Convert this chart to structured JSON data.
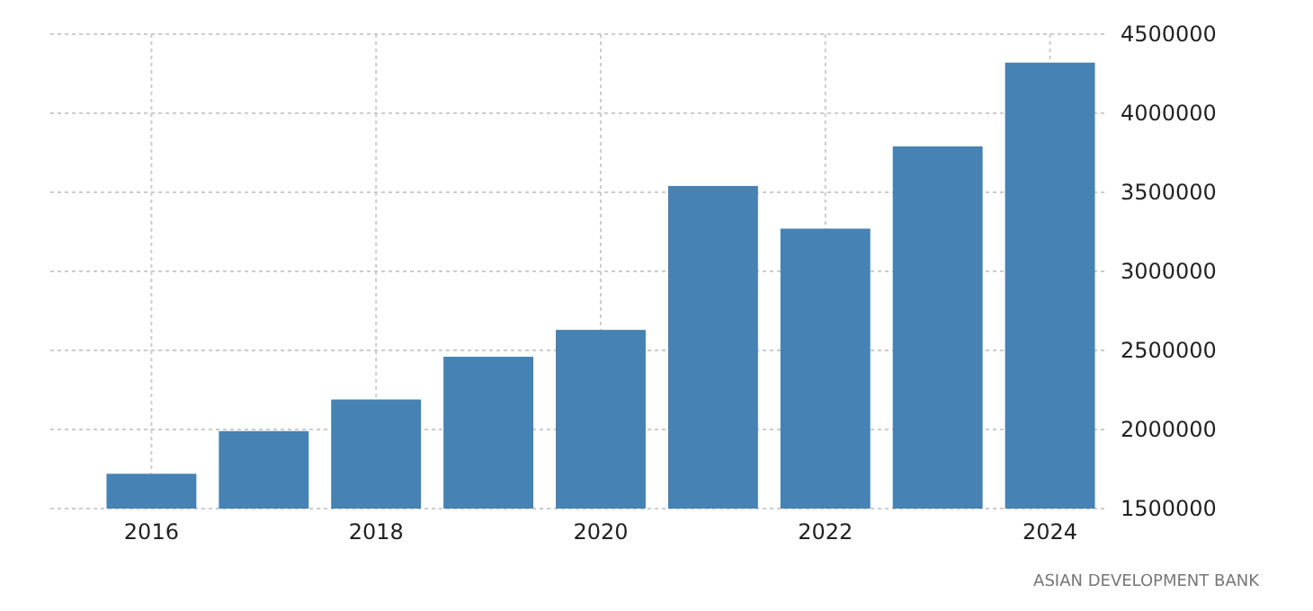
{
  "chart_data": {
    "type": "bar",
    "x": [
      2016,
      2017,
      2018,
      2019,
      2020,
      2021,
      2022,
      2023,
      2024
    ],
    "values": [
      1720000,
      1990000,
      2190000,
      2460000,
      2630000,
      3540000,
      3270000,
      3790000,
      4320000
    ],
    "color": "#4682b4",
    "xlim": [
      2015.1,
      2024.5
    ],
    "xticks": [
      2016,
      2018,
      2020,
      2022,
      2024
    ],
    "ylim": [
      1500000,
      4500000
    ],
    "yticks": [
      1500000,
      2000000,
      2500000,
      3000000,
      3500000,
      4000000,
      4500000
    ],
    "grid": true,
    "annotations": [
      "ASIAN DEVELOPMENT BANK"
    ]
  }
}
